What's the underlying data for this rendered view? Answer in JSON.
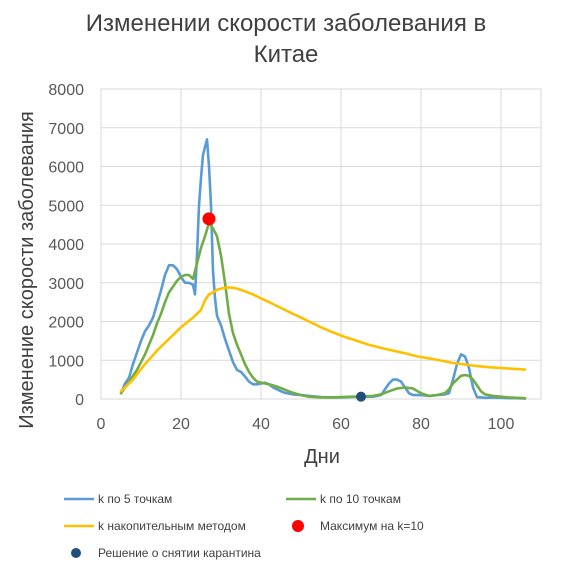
{
  "chart_data": {
    "type": "line",
    "title_lines": [
      "Изменении скорости заболевания в",
      "Китае"
    ],
    "xlabel": "Дни",
    "ylabel": "Изменение скорости заболевания",
    "xlim": [
      0,
      110
    ],
    "ylim": [
      0,
      8000
    ],
    "x_ticks": [
      0,
      20,
      40,
      60,
      80,
      100
    ],
    "y_ticks": [
      0,
      1000,
      2000,
      3000,
      4000,
      5000,
      6000,
      7000,
      8000
    ],
    "grid": true,
    "legend_position": "bottom",
    "series": [
      {
        "name": "k по 5 точкам",
        "color": "#5B9BD5",
        "marker": "line",
        "points": [
          [
            5,
            150
          ],
          [
            6,
            400
          ],
          [
            7,
            550
          ],
          [
            8,
            900
          ],
          [
            9,
            1200
          ],
          [
            10,
            1500
          ],
          [
            11,
            1750
          ],
          [
            12,
            1900
          ],
          [
            13,
            2100
          ],
          [
            14,
            2450
          ],
          [
            15,
            2800
          ],
          [
            16,
            3200
          ],
          [
            17,
            3450
          ],
          [
            18,
            3450
          ],
          [
            19,
            3350
          ],
          [
            20,
            3150
          ],
          [
            21,
            3000
          ],
          [
            22,
            3000
          ],
          [
            23,
            2950
          ],
          [
            23.5,
            2700
          ],
          [
            24,
            3700
          ],
          [
            24.5,
            5000
          ],
          [
            25,
            5700
          ],
          [
            25.5,
            6300
          ],
          [
            26,
            6500
          ],
          [
            26.5,
            6700
          ],
          [
            27,
            6000
          ],
          [
            27.5,
            5000
          ],
          [
            28,
            3300
          ],
          [
            28.5,
            2600
          ],
          [
            29,
            2150
          ],
          [
            30,
            1900
          ],
          [
            31,
            1550
          ],
          [
            32,
            1250
          ],
          [
            33,
            950
          ],
          [
            34,
            750
          ],
          [
            35,
            700
          ],
          [
            36,
            580
          ],
          [
            37,
            450
          ],
          [
            38,
            380
          ],
          [
            39,
            380
          ],
          [
            40,
            400
          ],
          [
            41,
            420
          ],
          [
            42,
            380
          ],
          [
            43,
            300
          ],
          [
            44,
            250
          ],
          [
            45,
            200
          ],
          [
            46,
            160
          ],
          [
            47,
            140
          ],
          [
            48,
            120
          ],
          [
            50,
            100
          ],
          [
            52,
            80
          ],
          [
            55,
            50
          ],
          [
            58,
            40
          ],
          [
            60,
            40
          ],
          [
            62,
            50
          ],
          [
            65,
            60
          ],
          [
            68,
            60
          ],
          [
            70,
            100
          ],
          [
            71,
            250
          ],
          [
            72,
            400
          ],
          [
            73,
            500
          ],
          [
            74,
            500
          ],
          [
            75,
            450
          ],
          [
            76,
            300
          ],
          [
            77,
            150
          ],
          [
            78,
            100
          ],
          [
            80,
            100
          ],
          [
            82,
            80
          ],
          [
            84,
            100
          ],
          [
            86,
            120
          ],
          [
            87,
            150
          ],
          [
            88,
            500
          ],
          [
            89,
            900
          ],
          [
            90,
            1150
          ],
          [
            91,
            1100
          ],
          [
            92,
            800
          ],
          [
            93,
            300
          ],
          [
            94,
            50
          ],
          [
            96,
            30
          ],
          [
            98,
            40
          ],
          [
            100,
            30
          ],
          [
            102,
            20
          ],
          [
            104,
            20
          ],
          [
            106,
            10
          ]
        ]
      },
      {
        "name": "k по 10 точкам",
        "color": "#70AD47",
        "marker": "line",
        "points": [
          [
            5,
            150
          ],
          [
            6,
            300
          ],
          [
            7,
            450
          ],
          [
            8,
            600
          ],
          [
            9,
            750
          ],
          [
            10,
            950
          ],
          [
            11,
            1150
          ],
          [
            12,
            1400
          ],
          [
            13,
            1650
          ],
          [
            14,
            1950
          ],
          [
            15,
            2200
          ],
          [
            16,
            2500
          ],
          [
            17,
            2750
          ],
          [
            18,
            2900
          ],
          [
            19,
            3050
          ],
          [
            20,
            3150
          ],
          [
            21,
            3200
          ],
          [
            22,
            3200
          ],
          [
            23,
            3100
          ],
          [
            24,
            3500
          ],
          [
            25,
            3900
          ],
          [
            26,
            4200
          ],
          [
            27,
            4550
          ],
          [
            28,
            4400
          ],
          [
            29,
            4200
          ],
          [
            30,
            3700
          ],
          [
            31,
            3000
          ],
          [
            32,
            2200
          ],
          [
            33,
            1700
          ],
          [
            34,
            1400
          ],
          [
            35,
            1150
          ],
          [
            36,
            900
          ],
          [
            37,
            700
          ],
          [
            38,
            550
          ],
          [
            39,
            450
          ],
          [
            40,
            420
          ],
          [
            41,
            400
          ],
          [
            42,
            380
          ],
          [
            43,
            350
          ],
          [
            44,
            320
          ],
          [
            45,
            280
          ],
          [
            46,
            240
          ],
          [
            47,
            200
          ],
          [
            48,
            160
          ],
          [
            50,
            100
          ],
          [
            52,
            60
          ],
          [
            55,
            40
          ],
          [
            58,
            40
          ],
          [
            60,
            50
          ],
          [
            63,
            60
          ],
          [
            66,
            70
          ],
          [
            68,
            80
          ],
          [
            70,
            120
          ],
          [
            72,
            200
          ],
          [
            74,
            270
          ],
          [
            76,
            300
          ],
          [
            78,
            270
          ],
          [
            80,
            150
          ],
          [
            82,
            80
          ],
          [
            84,
            100
          ],
          [
            86,
            150
          ],
          [
            87,
            250
          ],
          [
            88,
            400
          ],
          [
            89,
            500
          ],
          [
            90,
            600
          ],
          [
            91,
            620
          ],
          [
            92,
            600
          ],
          [
            93,
            500
          ],
          [
            94,
            350
          ],
          [
            95,
            200
          ],
          [
            96,
            120
          ],
          [
            98,
            80
          ],
          [
            100,
            60
          ],
          [
            102,
            40
          ],
          [
            104,
            30
          ],
          [
            106,
            20
          ]
        ]
      },
      {
        "name": "k накопительным методом",
        "color": "#FFC000",
        "marker": "line",
        "points": [
          [
            5,
            200
          ],
          [
            8,
            500
          ],
          [
            11,
            900
          ],
          [
            14,
            1250
          ],
          [
            17,
            1550
          ],
          [
            20,
            1850
          ],
          [
            23,
            2100
          ],
          [
            25,
            2300
          ],
          [
            26,
            2550
          ],
          [
            27,
            2700
          ],
          [
            28,
            2750
          ],
          [
            29,
            2820
          ],
          [
            30,
            2850
          ],
          [
            31,
            2870
          ],
          [
            32,
            2880
          ],
          [
            33,
            2870
          ],
          [
            34,
            2850
          ],
          [
            36,
            2780
          ],
          [
            38,
            2700
          ],
          [
            40,
            2600
          ],
          [
            42,
            2500
          ],
          [
            44,
            2400
          ],
          [
            46,
            2300
          ],
          [
            48,
            2200
          ],
          [
            50,
            2100
          ],
          [
            52,
            2000
          ],
          [
            55,
            1850
          ],
          [
            58,
            1720
          ],
          [
            61,
            1600
          ],
          [
            64,
            1500
          ],
          [
            67,
            1400
          ],
          [
            70,
            1320
          ],
          [
            73,
            1250
          ],
          [
            76,
            1180
          ],
          [
            79,
            1100
          ],
          [
            82,
            1050
          ],
          [
            85,
            990
          ],
          [
            88,
            930
          ],
          [
            91,
            890
          ],
          [
            94,
            850
          ],
          [
            97,
            820
          ],
          [
            100,
            800
          ],
          [
            103,
            780
          ],
          [
            106,
            760
          ]
        ]
      },
      {
        "name": "Максимум на k=10",
        "color": "#FF0000",
        "marker": "point",
        "points": [
          [
            27,
            4650
          ]
        ]
      },
      {
        "name": "Решение о снятии карантина",
        "color": "#1F4E79",
        "marker": "point",
        "points": [
          [
            65,
            60
          ]
        ]
      }
    ]
  }
}
